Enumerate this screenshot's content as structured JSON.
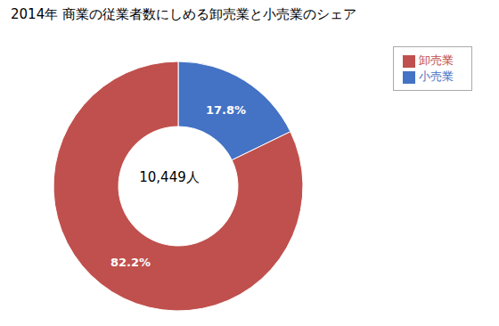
{
  "chart_data": {
    "type": "pie",
    "title": "2014年 商業の従業者数にしめる卸売業と小売業のシェア",
    "categories": [
      "小売業",
      "卸売業"
    ],
    "values": [
      17.8,
      82.2
    ],
    "value_labels": [
      "17.8%",
      "82.2%"
    ],
    "colors": [
      "#4472c4",
      "#c0504d"
    ],
    "annotations": [
      "10,449人"
    ],
    "data_labels": true,
    "legend": "upper right"
  }
}
